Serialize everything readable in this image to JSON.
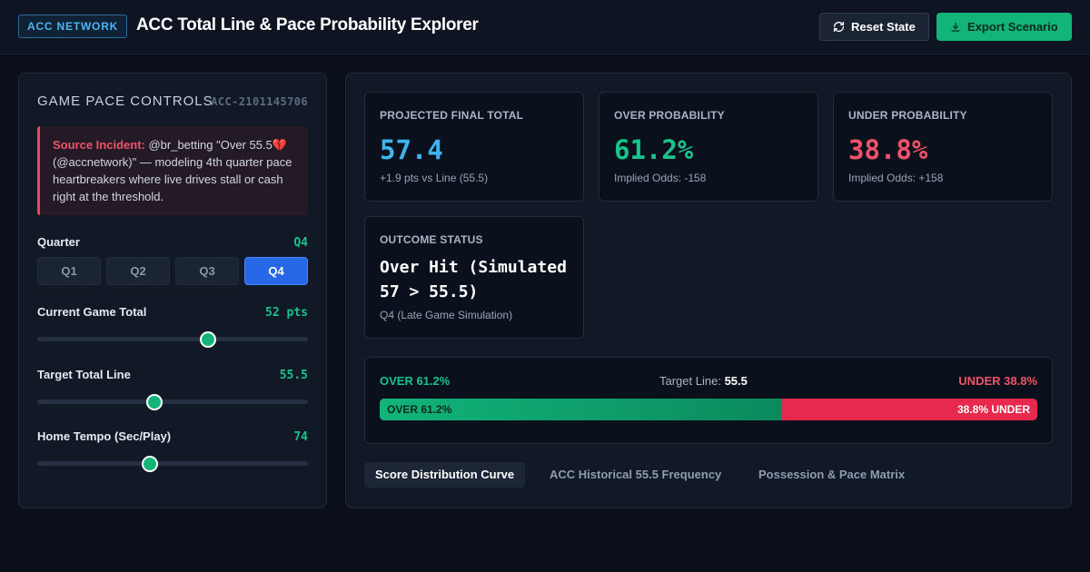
{
  "header": {
    "badge": "ACC NETWORK",
    "title": "ACC Total Line & Pace Probability Explorer",
    "reset_label": "Reset State",
    "export_label": "Export Scenario"
  },
  "controls": {
    "title": "GAME PACE CONTROLS",
    "id": "ACC-2101145706",
    "incident": {
      "source_label": "Source Incident:",
      "text": " @br_betting \"Over 55.5💔 (@accnetwork)\" — modeling 4th quarter pace heartbreakers where live drives stall or cash right at the threshold."
    },
    "quarter": {
      "label": "Quarter",
      "value": "Q4",
      "options": [
        "Q1",
        "Q2",
        "Q3",
        "Q4"
      ],
      "selected_index": 3
    },
    "current_total": {
      "label": "Current Game Total",
      "value": "52 pts",
      "level": 0.64
    },
    "target_line": {
      "label": "Target Total Line",
      "value": "55.5",
      "level": 0.43
    },
    "home_tempo": {
      "label": "Home Tempo (Sec/Play)",
      "value": "74",
      "level": 0.41
    }
  },
  "metrics": {
    "projected": {
      "label": "PROJECTED FINAL TOTAL",
      "value": "57.4",
      "sub": "+1.9 pts vs Line (55.5)",
      "color": "#3fb3ef"
    },
    "over": {
      "label": "OVER PROBABILITY",
      "value": "61.2%",
      "sub": "Implied Odds: -158",
      "color": "#19c48a"
    },
    "under": {
      "label": "UNDER PROBABILITY",
      "value": "38.8%",
      "sub": "Implied Odds: +158",
      "color": "#f0526a"
    },
    "status": {
      "label": "OUTCOME STATUS",
      "value": "Over Hit (Simulated 57 > 55.5)",
      "sub": "Q4 (Late Game Simulation)"
    }
  },
  "probability_bar": {
    "over_label": "OVER 61.2%",
    "target_label": "Target Line:",
    "target_value": "55.5",
    "under_label": "UNDER 38.8%",
    "bar_over_text": "OVER 61.2%",
    "bar_under_text": "38.8% UNDER",
    "over_fraction": 0.612
  },
  "tabs": [
    "Score Distribution Curve",
    "ACC Historical 55.5 Frequency",
    "Possession & Pace Matrix"
  ],
  "active_tab": 0
}
